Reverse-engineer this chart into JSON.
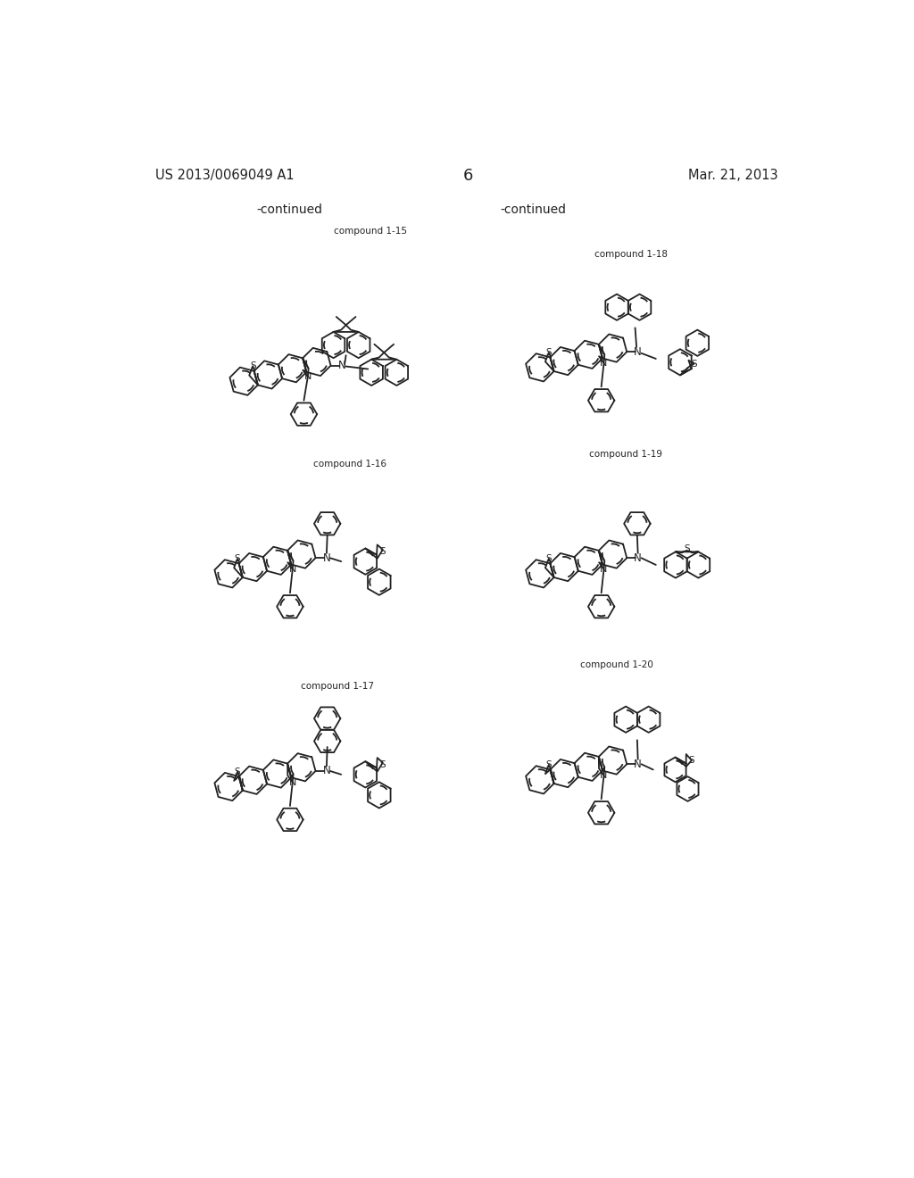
{
  "background_color": "#ffffff",
  "page_number": "6",
  "header_left": "US 2013/0069049 A1",
  "header_right": "Mar. 21, 2013",
  "continued_left": "-continued",
  "continued_right": "-continued",
  "text_color": "#222222",
  "line_color": "#222222",
  "font_size_header": 10.5,
  "font_size_compound": 7.5,
  "font_size_continued": 10,
  "font_size_page": 13,
  "font_size_atom": 7.5
}
